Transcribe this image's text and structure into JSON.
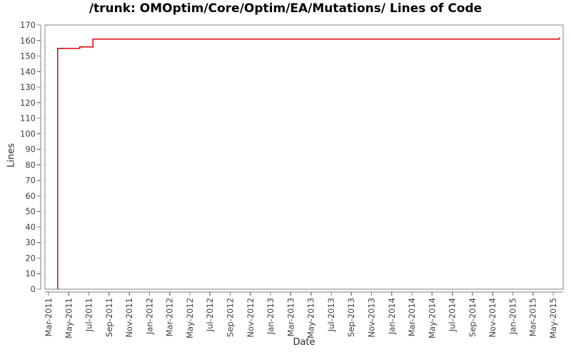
{
  "window": {
    "background_color": "#ffffff"
  },
  "chart_data": {
    "type": "line",
    "style": "step",
    "title": "/trunk: OMOptim/Core/Optim/EA/Mutations/ Lines of Code",
    "xlabel": "Date",
    "ylabel": "Lines",
    "ylim": [
      0,
      170
    ],
    "y_ticks": [
      0,
      10,
      20,
      30,
      40,
      50,
      60,
      70,
      80,
      90,
      100,
      110,
      120,
      130,
      140,
      150,
      160,
      170
    ],
    "x_tick_labels": [
      "Mar-2011",
      "May-2011",
      "Jul-2011",
      "Sep-2011",
      "Nov-2011",
      "Jan-2012",
      "Mar-2012",
      "May-2012",
      "Jul-2012",
      "Sep-2012",
      "Nov-2012",
      "Jan-2013",
      "Mar-2013",
      "May-2013",
      "Jul-2013",
      "Sep-2013",
      "Nov-2013",
      "Jan-2014",
      "Mar-2014",
      "May-2014",
      "Jul-2014",
      "Sep-2014",
      "Nov-2014",
      "Jan-2015",
      "Mar-2015",
      "May-2015"
    ],
    "x_tick_interval_months": 2,
    "grid": "off",
    "legend": "none",
    "line_color": "#e00000",
    "frame_color": "#808080",
    "tick_label_color": "#3f3f3f",
    "series": [
      {
        "name": "Lines of Code",
        "note": "month_offset is months after Mar-2011; step-shaped series",
        "points": [
          {
            "month_offset": 0.9,
            "lines": 0
          },
          {
            "month_offset": 0.9,
            "lines": 155
          },
          {
            "month_offset": 3.1,
            "lines": 155
          },
          {
            "month_offset": 3.1,
            "lines": 156
          },
          {
            "month_offset": 4.4,
            "lines": 156
          },
          {
            "month_offset": 4.4,
            "lines": 161
          },
          {
            "month_offset": 50.6,
            "lines": 161
          },
          {
            "month_offset": 50.6,
            "lines": 162
          }
        ]
      }
    ],
    "milestones": [
      {
        "date": "Apr-2011",
        "lines": 155
      },
      {
        "date": "Jun-2011",
        "lines": 156
      },
      {
        "date": "Jul-2011",
        "lines": 161
      },
      {
        "date": "May-2015",
        "lines": 162
      }
    ]
  }
}
